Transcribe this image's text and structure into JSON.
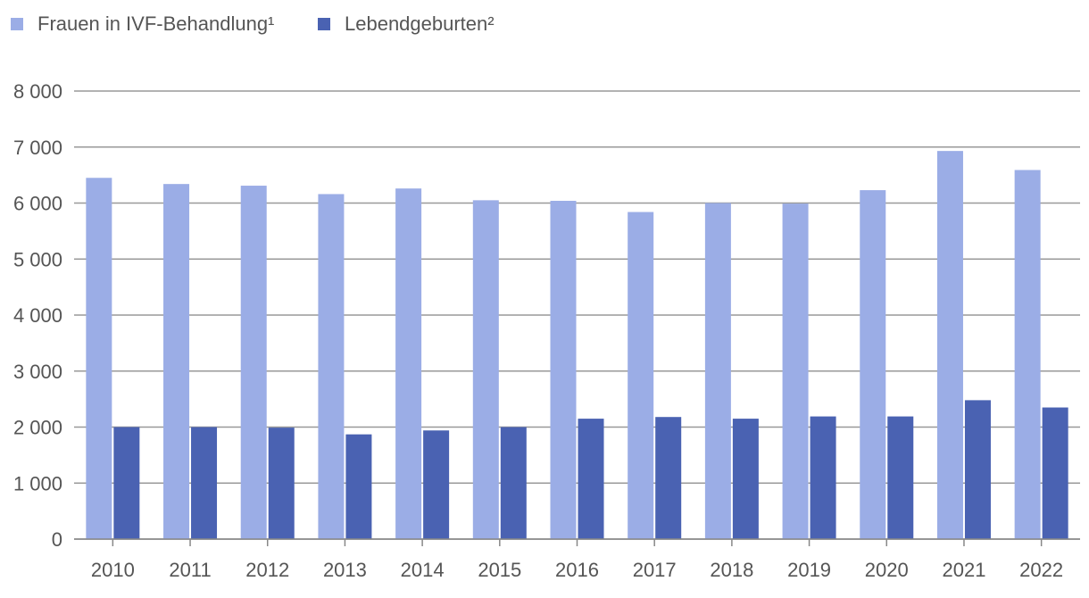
{
  "chart_data": {
    "type": "bar",
    "title": "",
    "xlabel": "",
    "ylabel": "",
    "categories": [
      "2010",
      "2011",
      "2012",
      "2013",
      "2014",
      "2015",
      "2016",
      "2017",
      "2018",
      "2019",
      "2020",
      "2021",
      "2022"
    ],
    "series": [
      {
        "name": "Frauen in IVF-Behandlung¹",
        "color": "#9badE6",
        "values": [
          6450,
          6340,
          6310,
          6160,
          6260,
          6050,
          6040,
          5840,
          6000,
          5990,
          6230,
          6930,
          6590
        ]
      },
      {
        "name": "Lebendgeburten²",
        "color": "#4a62b2",
        "values": [
          2000,
          2000,
          1990,
          1870,
          1940,
          2000,
          2150,
          2180,
          2150,
          2190,
          2190,
          2480,
          2350
        ]
      }
    ],
    "ylim": [
      0,
      8000
    ],
    "yticks": [
      {
        "value": 0,
        "label": "0"
      },
      {
        "value": 1000,
        "label": "1 000"
      },
      {
        "value": 2000,
        "label": "2 000"
      },
      {
        "value": 3000,
        "label": "3 000"
      },
      {
        "value": 4000,
        "label": "4 000"
      },
      {
        "value": 5000,
        "label": "5 000"
      },
      {
        "value": 6000,
        "label": "6 000"
      },
      {
        "value": 7000,
        "label": "7 000"
      },
      {
        "value": 8000,
        "label": "8 000"
      }
    ],
    "grid": true,
    "legend_position": "top-left"
  }
}
